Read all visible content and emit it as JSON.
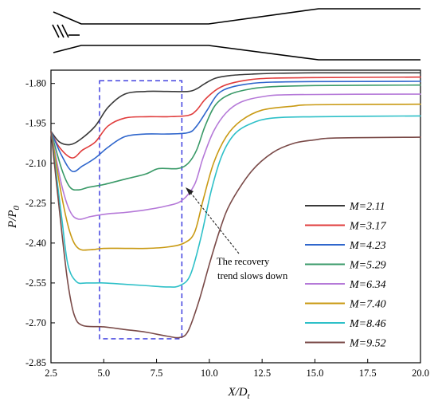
{
  "chart_data": {
    "type": "line",
    "xlabel": "X/D",
    "xlabel_sub": "t",
    "ylabel": "P/P",
    "ylabel_sub": "0",
    "xlim": [
      2.5,
      20.0
    ],
    "ylim": [
      -2.85,
      -1.75
    ],
    "xticks": [
      "2.5",
      "5.0",
      "7.5",
      "10.0",
      "12.5",
      "15.0",
      "17.5",
      "20.0"
    ],
    "yticks": [
      "-1.80",
      "-1.95",
      "-2.10",
      "-2.25",
      "-2.40",
      "-2.55",
      "-2.70",
      "-2.85"
    ],
    "annotation": {
      "line1": "The recovery",
      "line2": "trend slows down"
    },
    "highlight_box": {
      "x0": 4.8,
      "x1": 8.7,
      "y0": -1.79,
      "y1": -2.76,
      "color": "#3333dd"
    },
    "inset": "nozzle contour schematic",
    "series": [
      {
        "name": "M=2.11",
        "color": "#3a3a3a",
        "x": [
          2.5,
          2.9,
          3.4,
          3.9,
          4.6,
          5.2,
          6.0,
          7.0,
          8.0,
          9.0,
          9.4,
          9.8,
          10.3,
          11.0,
          12.0,
          13.0,
          15.0,
          20.0
        ],
        "y": [
          -1.98,
          -2.02,
          -2.03,
          -2.01,
          -1.96,
          -1.89,
          -1.84,
          -1.83,
          -1.83,
          -1.83,
          -1.82,
          -1.8,
          -1.78,
          -1.77,
          -1.765,
          -1.762,
          -1.76,
          -1.76
        ]
      },
      {
        "name": "M=3.17",
        "color": "#e03c3c",
        "x": [
          2.5,
          2.9,
          3.5,
          4.0,
          4.6,
          5.2,
          6.0,
          7.0,
          8.0,
          9.0,
          9.4,
          9.8,
          10.4,
          11.0,
          12.0,
          13.0,
          15.0,
          20.0
        ],
        "y": [
          -1.98,
          -2.04,
          -2.08,
          -2.05,
          -2.02,
          -1.96,
          -1.93,
          -1.925,
          -1.925,
          -1.92,
          -1.9,
          -1.86,
          -1.82,
          -1.8,
          -1.785,
          -1.78,
          -1.778,
          -1.776
        ]
      },
      {
        "name": "M=4.23",
        "color": "#2f66cc",
        "x": [
          2.5,
          3.0,
          3.5,
          4.0,
          4.6,
          5.2,
          6.0,
          7.0,
          8.0,
          9.0,
          9.4,
          9.9,
          10.4,
          11.0,
          12.0,
          13.0,
          15.0,
          20.0
        ],
        "y": [
          -1.98,
          -2.07,
          -2.13,
          -2.11,
          -2.08,
          -2.04,
          -2.0,
          -1.99,
          -1.99,
          -1.985,
          -1.96,
          -1.9,
          -1.84,
          -1.815,
          -1.8,
          -1.795,
          -1.793,
          -1.792
        ]
      },
      {
        "name": "M=5.29",
        "color": "#3a9a68",
        "x": [
          2.5,
          3.0,
          3.4,
          3.8,
          4.3,
          5.0,
          6.0,
          7.0,
          7.6,
          8.5,
          9.0,
          9.4,
          9.8,
          10.3,
          11.0,
          12.0,
          13.0,
          15.0,
          20.0
        ],
        "y": [
          -1.98,
          -2.12,
          -2.19,
          -2.2,
          -2.19,
          -2.18,
          -2.16,
          -2.14,
          -2.12,
          -2.12,
          -2.1,
          -2.05,
          -1.96,
          -1.88,
          -1.84,
          -1.82,
          -1.812,
          -1.808,
          -1.806
        ]
      },
      {
        "name": "M=6.34",
        "color": "#b579d8",
        "x": [
          2.5,
          3.0,
          3.4,
          3.8,
          4.4,
          5.2,
          6.0,
          7.0,
          8.0,
          8.7,
          9.3,
          9.7,
          10.2,
          10.8,
          11.5,
          12.5,
          14.0,
          20.0
        ],
        "y": [
          -1.98,
          -2.18,
          -2.28,
          -2.31,
          -2.3,
          -2.29,
          -2.285,
          -2.275,
          -2.26,
          -2.24,
          -2.18,
          -2.08,
          -1.98,
          -1.91,
          -1.87,
          -1.85,
          -1.842,
          -1.84
        ]
      },
      {
        "name": "M=7.40",
        "color": "#c99a14",
        "x": [
          2.5,
          3.0,
          3.4,
          3.8,
          4.4,
          5.0,
          6.0,
          7.0,
          8.0,
          8.8,
          9.3,
          9.7,
          10.2,
          10.8,
          11.5,
          12.5,
          14.0,
          15.0,
          20.0
        ],
        "y": [
          -1.98,
          -2.22,
          -2.36,
          -2.42,
          -2.425,
          -2.42,
          -2.42,
          -2.42,
          -2.415,
          -2.4,
          -2.36,
          -2.24,
          -2.1,
          -2.0,
          -1.94,
          -1.9,
          -1.885,
          -1.88,
          -1.878
        ]
      },
      {
        "name": "M=8.46",
        "color": "#2ec0c8",
        "x": [
          2.5,
          3.0,
          3.3,
          3.7,
          4.2,
          5.0,
          6.0,
          7.0,
          8.0,
          8.6,
          9.1,
          9.6,
          10.1,
          10.6,
          11.2,
          12.0,
          13.0,
          15.0,
          20.0
        ],
        "y": [
          -1.98,
          -2.3,
          -2.48,
          -2.545,
          -2.55,
          -2.55,
          -2.555,
          -2.56,
          -2.565,
          -2.56,
          -2.52,
          -2.38,
          -2.2,
          -2.07,
          -1.99,
          -1.95,
          -1.93,
          -1.925,
          -1.922
        ]
      },
      {
        "name": "M=9.52",
        "color": "#7a4a48",
        "x": [
          2.5,
          3.0,
          3.3,
          3.6,
          4.0,
          5.0,
          6.0,
          7.0,
          8.0,
          8.6,
          9.0,
          9.5,
          10.0,
          10.5,
          11.0,
          12.0,
          13.0,
          14.0,
          15.0,
          16.0,
          20.0
        ],
        "y": [
          -1.98,
          -2.35,
          -2.55,
          -2.67,
          -2.71,
          -2.715,
          -2.725,
          -2.735,
          -2.75,
          -2.755,
          -2.73,
          -2.62,
          -2.48,
          -2.35,
          -2.25,
          -2.13,
          -2.06,
          -2.025,
          -2.012,
          -2.005,
          -2.002
        ]
      }
    ]
  }
}
